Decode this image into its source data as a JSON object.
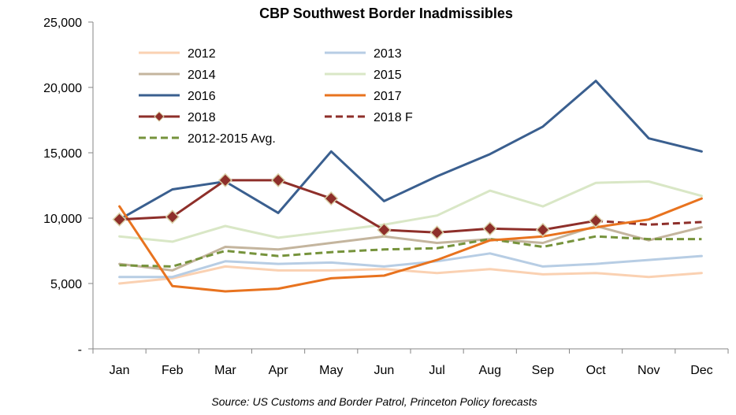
{
  "chart_data": {
    "type": "line",
    "title": "CBP Southwest Border Inadmissibles",
    "source": "Source: US Customs and Border Patrol, Princeton Policy forecasts",
    "categories": [
      "Jan",
      "Feb",
      "Mar",
      "Apr",
      "May",
      "Jun",
      "Jul",
      "Aug",
      "Sep",
      "Oct",
      "Nov",
      "Dec"
    ],
    "ylim": [
      0,
      25000
    ],
    "yticks": [
      {
        "value": 0,
        "label": "-"
      },
      {
        "value": 5000,
        "label": "5,000"
      },
      {
        "value": 10000,
        "label": "10,000"
      },
      {
        "value": 15000,
        "label": "15,000"
      },
      {
        "value": 20000,
        "label": "20,000"
      },
      {
        "value": 25000,
        "label": "25,000"
      }
    ],
    "grid": false,
    "legend_position": "top-left",
    "series": [
      {
        "name": "2012",
        "color": "#fad1b2",
        "dash": false,
        "marker": false,
        "values": [
          5000,
          5400,
          6300,
          6000,
          6000,
          6100,
          5800,
          6100,
          5700,
          5800,
          5500,
          5800
        ]
      },
      {
        "name": "2013",
        "color": "#b7cde4",
        "dash": false,
        "marker": false,
        "values": [
          5500,
          5500,
          6700,
          6500,
          6600,
          6300,
          6700,
          7300,
          6300,
          6500,
          6800,
          7100
        ]
      },
      {
        "name": "2014",
        "color": "#c4b59e",
        "dash": false,
        "marker": false,
        "values": [
          6500,
          6000,
          7800,
          7600,
          8100,
          8600,
          8100,
          8400,
          8100,
          9400,
          8300,
          9300
        ]
      },
      {
        "name": "2015",
        "color": "#d9e7c6",
        "dash": false,
        "marker": false,
        "values": [
          8600,
          8200,
          9400,
          8500,
          9000,
          9500,
          10200,
          12100,
          10900,
          12700,
          12800,
          11700
        ]
      },
      {
        "name": "2016",
        "color": "#3a5f8f",
        "dash": false,
        "marker": false,
        "values": [
          9900,
          12200,
          12800,
          10400,
          15100,
          11300,
          13200,
          14900,
          17000,
          20500,
          16100,
          15100
        ]
      },
      {
        "name": "2017",
        "color": "#e8731f",
        "dash": false,
        "marker": false,
        "values": [
          10900,
          4800,
          4400,
          4600,
          5400,
          5600,
          6800,
          8300,
          8600,
          9300,
          9900,
          11500
        ]
      },
      {
        "name": "2018",
        "color": "#8e2f2a",
        "dash": false,
        "marker": true,
        "values": [
          9900,
          10100,
          12900,
          12900,
          11500,
          9100,
          8900,
          9200,
          9100,
          9800,
          null,
          null
        ]
      },
      {
        "name": "2018 F",
        "color": "#8e2f2a",
        "dash": true,
        "marker": false,
        "values": [
          null,
          null,
          null,
          null,
          null,
          null,
          null,
          null,
          null,
          9800,
          9500,
          9700
        ]
      },
      {
        "name": "2012-2015 Avg.",
        "color": "#76933c",
        "dash": true,
        "marker": false,
        "values": [
          6400,
          6300,
          7500,
          7100,
          7400,
          7600,
          7700,
          8400,
          7800,
          8600,
          8400,
          8400
        ]
      }
    ]
  }
}
